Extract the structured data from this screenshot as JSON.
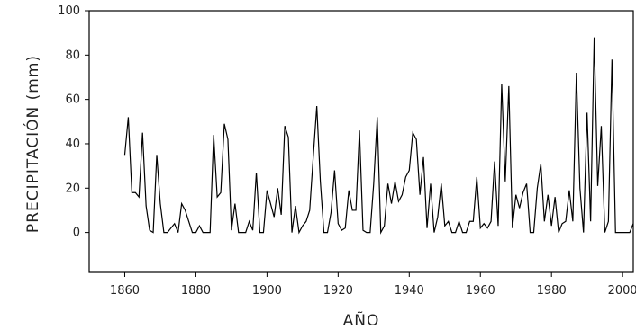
{
  "chart_data": {
    "type": "line",
    "xlabel": "AÑO",
    "ylabel": "PRECIPITACIÓN (mm)",
    "xlim": [
      1850,
      2003
    ],
    "ylim": [
      -18,
      100
    ],
    "xticks": [
      1860,
      1880,
      1900,
      1920,
      1940,
      1960,
      1980,
      2000
    ],
    "yticks": [
      0,
      20,
      40,
      60,
      80,
      100
    ],
    "grid": false,
    "line_color": "#000000",
    "series": [
      {
        "x": [
          1860,
          1861,
          1862,
          1863,
          1864,
          1865,
          1866,
          1867,
          1868,
          1869,
          1870,
          1871,
          1872,
          1873,
          1874,
          1875,
          1876,
          1877,
          1878,
          1879,
          1880,
          1881,
          1882,
          1883,
          1884,
          1885,
          1886,
          1887,
          1888,
          1889,
          1890,
          1891,
          1892,
          1893,
          1894,
          1895,
          1896,
          1897,
          1898,
          1899,
          1900,
          1901,
          1902,
          1903,
          1904,
          1905,
          1906,
          1907,
          1908,
          1909,
          1910,
          1911,
          1912,
          1913,
          1914,
          1915,
          1916,
          1917,
          1918,
          1919,
          1920,
          1921,
          1922,
          1923,
          1924,
          1925,
          1926,
          1927,
          1928,
          1929,
          1930,
          1931,
          1932,
          1933,
          1934,
          1935,
          1936,
          1937,
          1938,
          1939,
          1940,
          1941,
          1942,
          1943,
          1944,
          1945,
          1946,
          1947,
          1948,
          1949,
          1950,
          1951,
          1952,
          1953,
          1954,
          1955,
          1956,
          1957,
          1958,
          1959,
          1960,
          1961,
          1962,
          1963,
          1964,
          1965,
          1966,
          1967,
          1968,
          1969,
          1970,
          1971,
          1972,
          1973,
          1974,
          1975,
          1976,
          1977,
          1978,
          1979,
          1980,
          1981,
          1982,
          1983,
          1984,
          1985,
          1986,
          1987,
          1988,
          1989,
          1990,
          1991,
          1992,
          1993,
          1994,
          1995,
          1996,
          1997,
          1998,
          1999,
          2000,
          2001,
          2002,
          2003
        ],
        "values": [
          35,
          52,
          18,
          18,
          16,
          45,
          12,
          1,
          0,
          35,
          13,
          0,
          0,
          2,
          4,
          0,
          13,
          10,
          5,
          0,
          0,
          3,
          0,
          0,
          0,
          44,
          16,
          18,
          49,
          42,
          1,
          13,
          0,
          0,
          0,
          5,
          1,
          27,
          0,
          0,
          19,
          13,
          7,
          20,
          8,
          48,
          43,
          0,
          12,
          0,
          3,
          5,
          10,
          34,
          57,
          23,
          0,
          0,
          9,
          28,
          4,
          1,
          2,
          19,
          10,
          10,
          46,
          1,
          0,
          0,
          22,
          52,
          0,
          3,
          22,
          13,
          23,
          14,
          17,
          25,
          28,
          45,
          42,
          17,
          34,
          2,
          22,
          0,
          7,
          22,
          3,
          5,
          0,
          0,
          5,
          0,
          0,
          5,
          5,
          25,
          2,
          4,
          2,
          5,
          32,
          3,
          67,
          23,
          66,
          2,
          17,
          11,
          18,
          22,
          0,
          0,
          20,
          31,
          5,
          17,
          3,
          16,
          0,
          4,
          5,
          19,
          5,
          72,
          20,
          0,
          54,
          5,
          88,
          21,
          48,
          0,
          5,
          78,
          0,
          0,
          0,
          0,
          0,
          4
        ]
      }
    ]
  }
}
